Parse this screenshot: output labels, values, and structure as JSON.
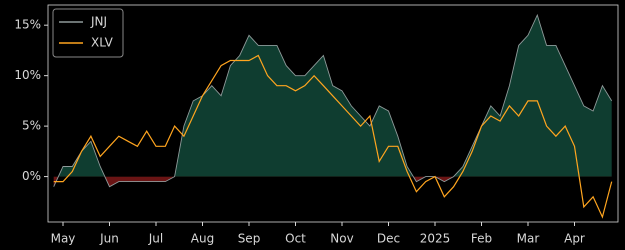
{
  "chart_data": {
    "type": "line",
    "categories": [
      null,
      "May",
      null,
      null,
      null,
      null,
      "Jun",
      null,
      null,
      null,
      null,
      "Jul",
      null,
      null,
      null,
      null,
      "Aug",
      null,
      null,
      null,
      null,
      "Sep",
      null,
      null,
      null,
      null,
      "Oct",
      null,
      null,
      null,
      null,
      "Nov",
      null,
      null,
      null,
      null,
      "Dec",
      null,
      null,
      null,
      null,
      "2025",
      null,
      null,
      null,
      null,
      "Feb",
      null,
      null,
      null,
      null,
      "Mar",
      null,
      null,
      null,
      null,
      "Apr",
      null,
      null,
      null,
      null
    ],
    "series": [
      {
        "name": "JNJ",
        "color": "#8f9a9a",
        "fill_above": "#0f3d30",
        "fill_below": "#6a1414",
        "values": [
          -1,
          1,
          1,
          2.5,
          3.5,
          1,
          -1,
          -0.5,
          -0.5,
          -0.5,
          -0.5,
          -0.5,
          -0.5,
          0,
          5,
          7.5,
          8,
          9,
          8,
          11,
          12,
          14,
          13,
          13,
          13,
          11,
          10,
          10,
          11,
          12,
          9,
          8.5,
          7,
          6,
          5,
          7,
          6.5,
          4,
          1,
          -0.5,
          0,
          0,
          -0.5,
          0,
          1,
          3,
          5,
          7,
          6,
          9,
          13,
          14,
          16,
          13,
          13,
          11,
          9,
          7,
          6.5,
          9,
          7.5
        ]
      },
      {
        "name": "XLV",
        "color": "#ffa51f",
        "values": [
          -0.5,
          -0.5,
          0.5,
          2.5,
          4,
          2,
          3,
          4,
          3.5,
          3,
          4.5,
          3,
          3,
          5,
          4,
          6,
          8,
          9.5,
          11,
          11.5,
          11.5,
          11.5,
          12,
          10,
          9,
          9,
          8.5,
          9,
          10,
          9,
          8,
          7,
          6,
          5,
          6,
          1.5,
          3,
          3,
          0.5,
          -1.5,
          -0.5,
          0,
          -2,
          -1,
          0.5,
          2.5,
          5,
          6,
          5.5,
          7,
          6,
          7.5,
          7.5,
          5,
          4,
          5,
          3,
          -3,
          -2,
          -4,
          -0.5
        ]
      }
    ],
    "ylim": [
      -4.5,
      17
    ],
    "yticks": [
      {
        "value": 0,
        "label": "0%"
      },
      {
        "value": 5,
        "label": "5%"
      },
      {
        "value": 10,
        "label": "10%"
      },
      {
        "value": 15,
        "label": "15%"
      }
    ],
    "legend": "upper left"
  }
}
